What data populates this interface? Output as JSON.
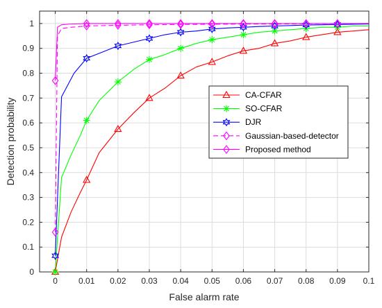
{
  "chart_data": {
    "type": "line",
    "xlabel": "False alarm rate",
    "ylabel": "Detection probability",
    "xlim": [
      -0.005,
      0.1
    ],
    "ylim": [
      0,
      1.05
    ],
    "xticks": [
      0,
      0.01,
      0.02,
      0.03,
      0.04,
      0.05,
      0.06,
      0.07,
      0.08,
      0.09,
      0.1
    ],
    "xtick_labels": [
      "0",
      "0.01",
      "0.02",
      "0.03",
      "0.04",
      "0.05",
      "0.06",
      "0.07",
      "0.08",
      "0.09",
      "0.1"
    ],
    "yticks": [
      0,
      0.1,
      0.2,
      0.3,
      0.4,
      0.5,
      0.6,
      0.7,
      0.8,
      0.9,
      1
    ],
    "ytick_labels": [
      "0",
      "0.1",
      "0.2",
      "0.3",
      "0.4",
      "0.5",
      "0.6",
      "0.7",
      "0.8",
      "0.9",
      "1"
    ],
    "grid": true,
    "legend_position": "center-right",
    "series": [
      {
        "name": "CA-CFAR",
        "color": "#ff0000",
        "dash": "solid",
        "marker": "triangle",
        "x": [
          0,
          0.002,
          0.005,
          0.008,
          0.01,
          0.014,
          0.02,
          0.025,
          0.03,
          0.035,
          0.04,
          0.045,
          0.05,
          0.055,
          0.06,
          0.065,
          0.07,
          0.075,
          0.08,
          0.085,
          0.09,
          0.095,
          0.1
        ],
        "y": [
          0,
          0.14,
          0.24,
          0.32,
          0.37,
          0.48,
          0.575,
          0.64,
          0.7,
          0.74,
          0.79,
          0.825,
          0.845,
          0.87,
          0.89,
          0.9,
          0.92,
          0.93,
          0.945,
          0.955,
          0.965,
          0.97,
          0.975
        ],
        "marker_x": [
          0,
          0.01,
          0.02,
          0.03,
          0.04,
          0.05,
          0.06,
          0.07,
          0.08,
          0.09
        ],
        "marker_y": [
          0,
          0.37,
          0.575,
          0.7,
          0.79,
          0.845,
          0.89,
          0.92,
          0.945,
          0.965
        ]
      },
      {
        "name": "SO-CFAR",
        "color": "#00ff00",
        "dash": "solid",
        "marker": "star",
        "x": [
          0,
          0.002,
          0.005,
          0.008,
          0.01,
          0.014,
          0.02,
          0.025,
          0.03,
          0.035,
          0.04,
          0.045,
          0.05,
          0.055,
          0.06,
          0.065,
          0.07,
          0.075,
          0.08,
          0.085,
          0.09,
          0.095,
          0.1
        ],
        "y": [
          0,
          0.38,
          0.47,
          0.55,
          0.61,
          0.69,
          0.765,
          0.815,
          0.855,
          0.875,
          0.9,
          0.92,
          0.935,
          0.945,
          0.955,
          0.965,
          0.97,
          0.975,
          0.98,
          0.985,
          0.985,
          0.99,
          0.99
        ],
        "marker_x": [
          0,
          0.01,
          0.02,
          0.03,
          0.04,
          0.05,
          0.06,
          0.07,
          0.08,
          0.09
        ],
        "marker_y": [
          0,
          0.61,
          0.765,
          0.855,
          0.9,
          0.935,
          0.955,
          0.97,
          0.98,
          0.985
        ]
      },
      {
        "name": "DJR",
        "color": "#0000ff",
        "dash": "solid",
        "marker": "hexagram",
        "x": [
          0,
          0.002,
          0.006,
          0.01,
          0.015,
          0.02,
          0.025,
          0.03,
          0.035,
          0.04,
          0.045,
          0.05,
          0.055,
          0.06,
          0.065,
          0.07,
          0.075,
          0.08,
          0.085,
          0.09,
          0.095,
          0.1
        ],
        "y": [
          0.065,
          0.705,
          0.8,
          0.86,
          0.885,
          0.91,
          0.925,
          0.94,
          0.955,
          0.965,
          0.97,
          0.978,
          0.982,
          0.985,
          0.988,
          0.99,
          0.992,
          0.994,
          0.995,
          0.996,
          0.997,
          0.998
        ],
        "marker_x": [
          0,
          0.01,
          0.02,
          0.03,
          0.04,
          0.05,
          0.06,
          0.07,
          0.08,
          0.09
        ],
        "marker_y": [
          0.065,
          0.86,
          0.91,
          0.94,
          0.965,
          0.978,
          0.985,
          0.99,
          0.994,
          0.996
        ]
      },
      {
        "name": "Gaussian-based-detector",
        "color": "#ff00ff",
        "dash": "dashed",
        "marker": "diamond",
        "x": [
          0,
          0.0007,
          0.002,
          0.005,
          0.01,
          0.02,
          0.03,
          0.04,
          0.05,
          0.06,
          0.07,
          0.08,
          0.09,
          0.1
        ],
        "y": [
          0.16,
          0.95,
          0.98,
          0.985,
          0.99,
          0.993,
          0.995,
          0.996,
          0.997,
          0.998,
          0.998,
          0.999,
          0.999,
          1
        ],
        "marker_x": [
          0,
          0.01,
          0.02,
          0.03,
          0.04,
          0.05,
          0.06,
          0.07,
          0.08,
          0.09
        ],
        "marker_y": [
          0.16,
          0.99,
          0.993,
          0.995,
          0.996,
          0.997,
          0.998,
          0.998,
          0.999,
          0.999
        ]
      },
      {
        "name": "Proposed method",
        "color": "#ff00ff",
        "dash": "solid",
        "marker": "diamond",
        "x": [
          0,
          0.0007,
          0.002,
          0.005,
          0.01,
          0.02,
          0.03,
          0.04,
          0.05,
          0.06,
          0.07,
          0.08,
          0.09,
          0.1
        ],
        "y": [
          0.77,
          0.985,
          0.995,
          0.998,
          1,
          1,
          1,
          1,
          1,
          1,
          1,
          1,
          1,
          1
        ],
        "marker_x": [
          0,
          0.01,
          0.02,
          0.03,
          0.04,
          0.05,
          0.06,
          0.07,
          0.08,
          0.09
        ],
        "marker_y": [
          0.77,
          1,
          1,
          1,
          1,
          1,
          1,
          1,
          1,
          1
        ]
      }
    ]
  }
}
